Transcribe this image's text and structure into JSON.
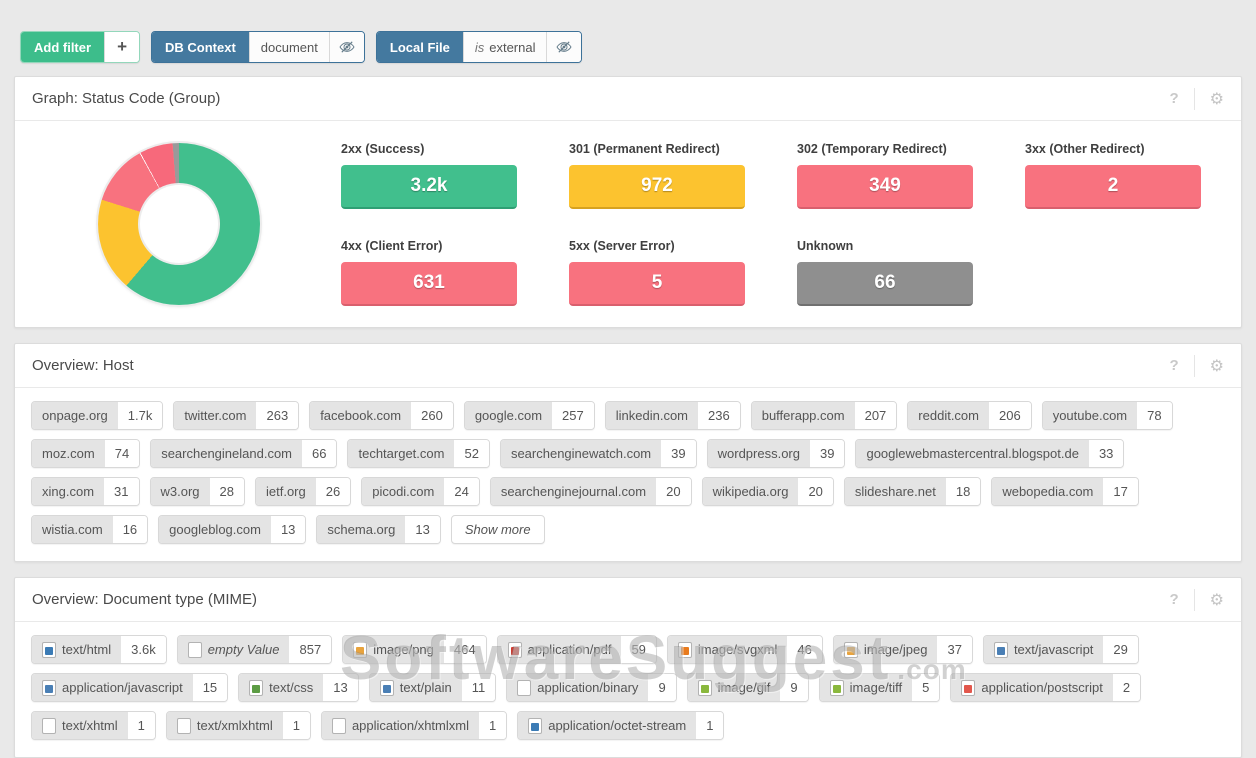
{
  "filters": {
    "add": {
      "label": "Add filter",
      "plus": "+"
    },
    "items": [
      {
        "name": "DB Context",
        "operator": "",
        "value": "document"
      },
      {
        "name": "Local File",
        "operator": "is",
        "value": "external"
      }
    ]
  },
  "icons": {
    "help": "?",
    "gear": "⚙"
  },
  "panels": {
    "status": {
      "title": "Graph: Status Code (Group)",
      "stats": [
        {
          "label": "2xx (Success)",
          "value": "3.2k",
          "color": "#41bf8d",
          "border": "#2f9f74"
        },
        {
          "label": "301 (Permanent Redirect)",
          "value": "972",
          "color": "#fcc32f",
          "border": "#d7a21f"
        },
        {
          "label": "302 (Temporary Redirect)",
          "value": "349",
          "color": "#f8727f",
          "border": "#d95f6d"
        },
        {
          "label": "3xx (Other Redirect)",
          "value": "2",
          "color": "#f8727f",
          "border": "#d95f6d"
        },
        {
          "label": "4xx (Client Error)",
          "value": "631",
          "color": "#f8727f",
          "border": "#d95f6d"
        },
        {
          "label": "5xx (Server Error)",
          "value": "5",
          "color": "#f8727f",
          "border": "#d95f6d"
        },
        {
          "label": "Unknown",
          "value": "66",
          "color": "#8f8f8f",
          "border": "#707070"
        }
      ]
    },
    "host": {
      "title": "Overview: Host",
      "show_more": "Show more",
      "tags": [
        {
          "label": "onpage.org",
          "count": "1.7k"
        },
        {
          "label": "twitter.com",
          "count": "263"
        },
        {
          "label": "facebook.com",
          "count": "260"
        },
        {
          "label": "google.com",
          "count": "257"
        },
        {
          "label": "linkedin.com",
          "count": "236"
        },
        {
          "label": "bufferapp.com",
          "count": "207"
        },
        {
          "label": "reddit.com",
          "count": "206"
        },
        {
          "label": "youtube.com",
          "count": "78"
        },
        {
          "label": "moz.com",
          "count": "74"
        },
        {
          "label": "searchengineland.com",
          "count": "66"
        },
        {
          "label": "techtarget.com",
          "count": "52"
        },
        {
          "label": "searchenginewatch.com",
          "count": "39"
        },
        {
          "label": "wordpress.org",
          "count": "39"
        },
        {
          "label": "googlewebmastercentral.blogspot.de",
          "count": "33"
        },
        {
          "label": "xing.com",
          "count": "31"
        },
        {
          "label": "w3.org",
          "count": "28"
        },
        {
          "label": "ietf.org",
          "count": "26"
        },
        {
          "label": "picodi.com",
          "count": "24"
        },
        {
          "label": "searchenginejournal.com",
          "count": "20"
        },
        {
          "label": "wikipedia.org",
          "count": "20"
        },
        {
          "label": "slideshare.net",
          "count": "18"
        },
        {
          "label": "webopedia.com",
          "count": "17"
        },
        {
          "label": "wistia.com",
          "count": "16"
        },
        {
          "label": "googleblog.com",
          "count": "13"
        },
        {
          "label": "schema.org",
          "count": "13"
        }
      ]
    },
    "mime": {
      "title": "Overview: Document type (MIME)",
      "tags": [
        {
          "label": "text/html",
          "count": "3.6k",
          "icon": "file-html-icon",
          "icon_color": "#3b7bb5"
        },
        {
          "label": "empty Value",
          "count": "857",
          "icon": "file-blank-icon",
          "icon_color": "#ffffff",
          "italic": true
        },
        {
          "label": "image/png",
          "count": "464",
          "icon": "file-image-png-icon",
          "icon_color": "#e8a33d"
        },
        {
          "label": "application/pdf",
          "count": "59",
          "icon": "file-pdf-icon",
          "icon_color": "#d6382c"
        },
        {
          "label": "image/svgxml",
          "count": "46",
          "icon": "file-image-svg-icon",
          "icon_color": "#e87b1e"
        },
        {
          "label": "image/jpeg",
          "count": "37",
          "icon": "file-image-jpeg-icon",
          "icon_color": "#e8a33d"
        },
        {
          "label": "text/javascript",
          "count": "29",
          "icon": "file-javascript-icon",
          "icon_color": "#4a7fb5"
        },
        {
          "label": "application/javascript",
          "count": "15",
          "icon": "file-javascript-icon",
          "icon_color": "#4a7fb5"
        },
        {
          "label": "text/css",
          "count": "13",
          "icon": "file-css-icon",
          "icon_color": "#5c9c44"
        },
        {
          "label": "text/plain",
          "count": "11",
          "icon": "file-text-icon",
          "icon_color": "#4a7fb5"
        },
        {
          "label": "application/binary",
          "count": "9",
          "icon": "file-blank-icon",
          "icon_color": "#ffffff"
        },
        {
          "label": "image/gif",
          "count": "9",
          "icon": "file-image-gif-icon",
          "icon_color": "#8ab83d"
        },
        {
          "label": "image/tiff",
          "count": "5",
          "icon": "file-image-tiff-icon",
          "icon_color": "#8ab83d"
        },
        {
          "label": "application/postscript",
          "count": "2",
          "icon": "file-postscript-icon",
          "icon_color": "#e2574c"
        },
        {
          "label": "text/xhtml",
          "count": "1",
          "icon": "file-blank-icon",
          "icon_color": "#ffffff"
        },
        {
          "label": "text/xmlxhtml",
          "count": "1",
          "icon": "file-blank-icon",
          "icon_color": "#ffffff"
        },
        {
          "label": "application/xhtmlxml",
          "count": "1",
          "icon": "file-blank-icon",
          "icon_color": "#ffffff"
        },
        {
          "label": "application/octet-stream",
          "count": "1",
          "icon": "file-octet-stream-icon",
          "icon_color": "#3b7bb5"
        }
      ]
    }
  },
  "chart_data": {
    "type": "pie",
    "title": "Status Code (Group)",
    "donut": true,
    "slices": [
      {
        "label": "2xx (Success)",
        "value": 3200,
        "color": "#41bf8d"
      },
      {
        "label": "301 (Permanent Redirect)",
        "value": 972,
        "color": "#fcc32f"
      },
      {
        "label": "4xx (Client Error)",
        "value": 631,
        "color": "#f8727f"
      },
      {
        "label": "302 (Temporary Redirect)",
        "value": 349,
        "color": "#f7697b",
        "divider_before": true
      },
      {
        "label": "5xx (Server Error)",
        "value": 5,
        "color": "#f8727f"
      },
      {
        "label": "3xx (Other Redirect)",
        "value": 2,
        "color": "#f8727f"
      },
      {
        "label": "Unknown",
        "value": 66,
        "color": "#9a9a9a"
      }
    ]
  },
  "watermark": {
    "text": "SoftwareSuggest",
    "suffix": ".com"
  }
}
